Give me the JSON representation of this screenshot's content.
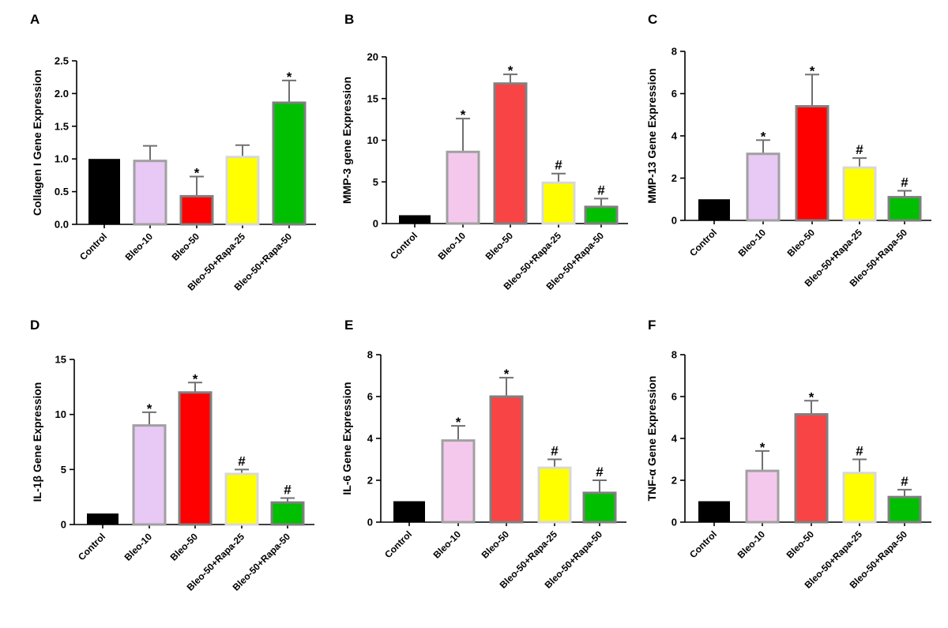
{
  "chart_data": [
    {
      "type": "bar",
      "panel": "A",
      "ylabel": "Collagen I Gene Expression",
      "ylim": [
        0,
        2.5
      ],
      "yticks": [
        "0.0",
        "0.5",
        "1.0",
        "1.5",
        "2.0",
        "2.5"
      ],
      "categories": [
        "Control",
        "Bleo-10",
        "Bleo-50",
        "Bleo-50+Rapa-25",
        "Bleo-50+Rapa-50"
      ],
      "values": [
        1.0,
        0.97,
        0.43,
        1.03,
        1.86
      ],
      "errors": [
        0,
        0.23,
        0.3,
        0.18,
        0.34
      ],
      "significance": [
        "",
        "",
        "*",
        "",
        "*"
      ]
    },
    {
      "type": "bar",
      "panel": "B",
      "ylabel": "MMP-3 gene Expression",
      "ylim": [
        0,
        20
      ],
      "yticks": [
        "0",
        "5",
        "10",
        "15",
        "20"
      ],
      "categories": [
        "Control",
        "Bleo-10",
        "Bleo-50",
        "Bleo-50+Rapa-25",
        "Bleo-50+Rapa-50"
      ],
      "values": [
        1.0,
        8.6,
        16.8,
        4.9,
        2.0
      ],
      "errors": [
        0,
        4.0,
        1.1,
        1.1,
        1.0
      ],
      "significance": [
        "",
        "*",
        "*",
        "#",
        "#"
      ]
    },
    {
      "type": "bar",
      "panel": "C",
      "ylabel": "MMP-13 Gene Expression",
      "ylim": [
        0,
        8
      ],
      "yticks": [
        "0",
        "2",
        "4",
        "6",
        "8"
      ],
      "categories": [
        "Control",
        "Bleo-10",
        "Bleo-50",
        "Bleo-50+Rapa-25",
        "Bleo-50+Rapa-50"
      ],
      "values": [
        1.0,
        3.15,
        5.4,
        2.5,
        1.1
      ],
      "errors": [
        0,
        0.65,
        1.5,
        0.45,
        0.3
      ],
      "significance": [
        "",
        "*",
        "*",
        "#",
        "#"
      ]
    },
    {
      "type": "bar",
      "panel": "D",
      "ylabel": "IL-1β Gene Expression",
      "ylim": [
        0,
        15
      ],
      "yticks": [
        "0",
        "5",
        "10",
        "15"
      ],
      "categories": [
        "Control",
        "Bleo-10",
        "Bleo-50",
        "Bleo-50+Rapa-25",
        "Bleo-50+Rapa-50"
      ],
      "values": [
        1.0,
        9.0,
        12.0,
        4.6,
        2.0
      ],
      "errors": [
        0,
        1.2,
        0.9,
        0.4,
        0.4
      ],
      "significance": [
        "",
        "*",
        "*",
        "#",
        "#"
      ]
    },
    {
      "type": "bar",
      "panel": "E",
      "ylabel": "IL-6 Gene Expression",
      "ylim": [
        0,
        8
      ],
      "yticks": [
        "0",
        "2",
        "4",
        "6",
        "8"
      ],
      "categories": [
        "Control",
        "Bleo-10",
        "Bleo-50",
        "Bleo-50+Rapa-25",
        "Bleo-50+Rapa-50"
      ],
      "values": [
        1.0,
        3.9,
        6.0,
        2.6,
        1.4
      ],
      "errors": [
        0,
        0.7,
        0.9,
        0.4,
        0.6
      ],
      "significance": [
        "",
        "*",
        "*",
        "#",
        "#"
      ]
    },
    {
      "type": "bar",
      "panel": "F",
      "ylabel": "TNF-α Gene Expression",
      "ylim": [
        0,
        8
      ],
      "yticks": [
        "0",
        "2",
        "4",
        "6",
        "8"
      ],
      "categories": [
        "Control",
        "Bleo-10",
        "Bleo-50",
        "Bleo-50+Rapa-25",
        "Bleo-50+Rapa-50"
      ],
      "values": [
        1.0,
        2.45,
        5.15,
        2.35,
        1.2
      ],
      "errors": [
        0,
        0.95,
        0.65,
        0.65,
        0.35
      ],
      "significance": [
        "",
        "*",
        "*",
        "#",
        "#"
      ]
    }
  ],
  "colors": {
    "fills": [
      "#000000",
      "#e8c8f4",
      "#ff0000",
      "#ffff00",
      "#00bf00"
    ],
    "altFills": [
      "#000000",
      "#f4c8ec",
      "#f84444",
      "#ffff00",
      "#00bf00"
    ],
    "strokes": [
      "#000000",
      "#a0a0a0",
      "#808080",
      "#d8d8d8",
      "#808080"
    ]
  }
}
